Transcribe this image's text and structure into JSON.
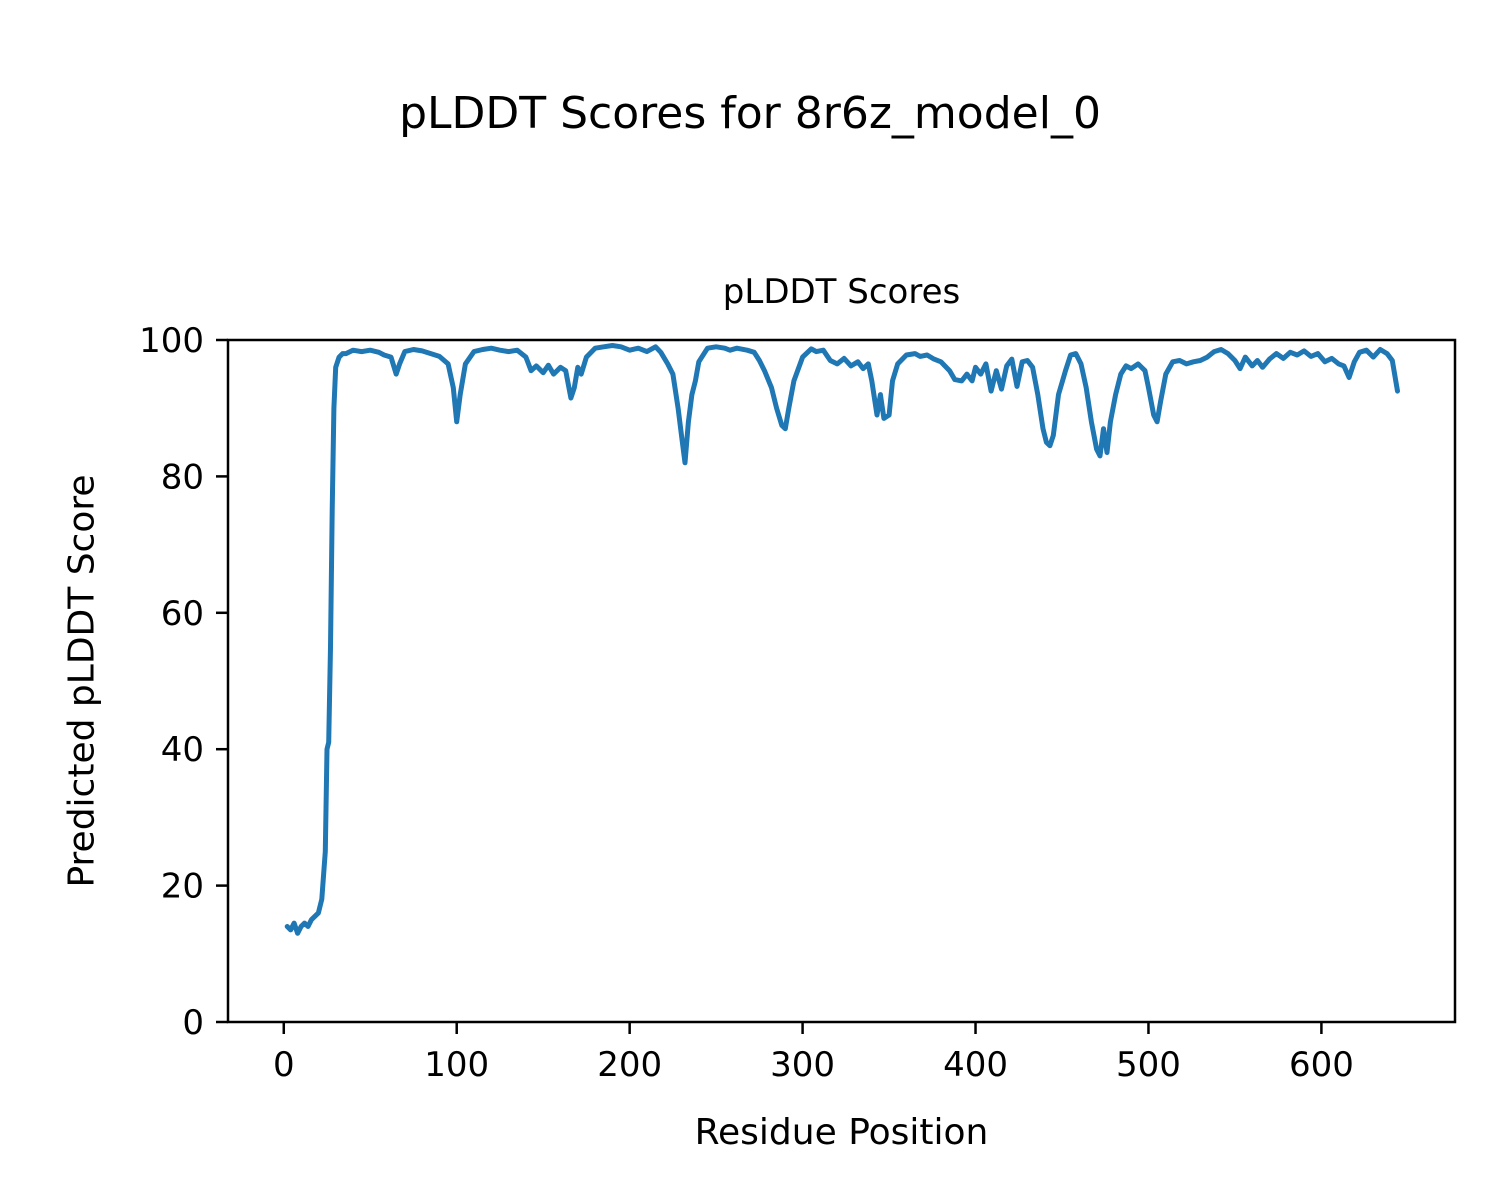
{
  "figure_title": "pLDDT Scores for 8r6z_model_0",
  "chart_data": {
    "type": "line",
    "title": "pLDDT Scores",
    "xlabel": "Residue Position",
    "ylabel": "Predicted pLDDT Score",
    "xlim": [
      -32.25,
      677.25
    ],
    "ylim": [
      0,
      100
    ],
    "xticks": [
      0,
      100,
      200,
      300,
      400,
      500,
      600
    ],
    "yticks": [
      0,
      20,
      40,
      60,
      80,
      100
    ],
    "grid": false,
    "legend": "none",
    "line_color": "#1f77b4",
    "line_width": 5,
    "series": [
      {
        "name": "pLDDT",
        "points": [
          [
            2,
            14
          ],
          [
            4,
            13.5
          ],
          [
            6,
            14.5
          ],
          [
            8,
            13
          ],
          [
            10,
            14
          ],
          [
            12,
            14.5
          ],
          [
            14,
            14
          ],
          [
            16,
            15
          ],
          [
            18,
            15.5
          ],
          [
            20,
            16
          ],
          [
            22,
            18
          ],
          [
            24,
            25
          ],
          [
            25,
            40
          ],
          [
            26,
            41
          ],
          [
            27,
            55
          ],
          [
            28,
            75
          ],
          [
            29,
            90
          ],
          [
            30,
            96
          ],
          [
            32,
            97.5
          ],
          [
            34,
            98
          ],
          [
            36,
            98
          ],
          [
            40,
            98.5
          ],
          [
            45,
            98.3
          ],
          [
            50,
            98.5
          ],
          [
            55,
            98.2
          ],
          [
            58,
            97.8
          ],
          [
            62,
            97.5
          ],
          [
            65,
            95
          ],
          [
            67,
            96.5
          ],
          [
            70,
            98.3
          ],
          [
            75,
            98.6
          ],
          [
            80,
            98.4
          ],
          [
            85,
            98
          ],
          [
            90,
            97.6
          ],
          [
            95,
            96.5
          ],
          [
            98,
            93
          ],
          [
            100,
            88
          ],
          [
            102,
            92
          ],
          [
            105,
            96.5
          ],
          [
            110,
            98.3
          ],
          [
            115,
            98.6
          ],
          [
            120,
            98.8
          ],
          [
            125,
            98.5
          ],
          [
            130,
            98.3
          ],
          [
            135,
            98.5
          ],
          [
            140,
            97.5
          ],
          [
            143,
            95.5
          ],
          [
            146,
            96.2
          ],
          [
            150,
            95.2
          ],
          [
            153,
            96.3
          ],
          [
            156,
            95
          ],
          [
            160,
            96
          ],
          [
            163,
            95.5
          ],
          [
            166,
            91.5
          ],
          [
            168,
            93
          ],
          [
            170,
            96
          ],
          [
            172,
            95
          ],
          [
            175,
            97.5
          ],
          [
            180,
            98.8
          ],
          [
            185,
            99
          ],
          [
            190,
            99.2
          ],
          [
            195,
            99
          ],
          [
            200,
            98.5
          ],
          [
            205,
            98.8
          ],
          [
            210,
            98.3
          ],
          [
            215,
            99
          ],
          [
            218,
            98.2
          ],
          [
            222,
            96.5
          ],
          [
            225,
            95
          ],
          [
            228,
            90
          ],
          [
            230,
            86
          ],
          [
            232,
            82
          ],
          [
            234,
            88
          ],
          [
            236,
            92
          ],
          [
            238,
            94
          ],
          [
            240,
            96.8
          ],
          [
            245,
            98.8
          ],
          [
            250,
            99
          ],
          [
            255,
            98.8
          ],
          [
            258,
            98.5
          ],
          [
            262,
            98.8
          ],
          [
            268,
            98.5
          ],
          [
            272,
            98.2
          ],
          [
            275,
            97
          ],
          [
            278,
            95.5
          ],
          [
            282,
            93
          ],
          [
            285,
            90
          ],
          [
            288,
            87.5
          ],
          [
            290,
            87
          ],
          [
            292,
            90
          ],
          [
            295,
            94
          ],
          [
            300,
            97.5
          ],
          [
            305,
            98.7
          ],
          [
            308,
            98.3
          ],
          [
            312,
            98.5
          ],
          [
            316,
            97
          ],
          [
            320,
            96.5
          ],
          [
            324,
            97.3
          ],
          [
            328,
            96.2
          ],
          [
            332,
            96.8
          ],
          [
            335,
            95.8
          ],
          [
            338,
            96.5
          ],
          [
            340,
            94
          ],
          [
            343,
            89
          ],
          [
            345,
            92
          ],
          [
            347,
            88.5
          ],
          [
            350,
            89
          ],
          [
            352,
            94
          ],
          [
            355,
            96.5
          ],
          [
            360,
            97.8
          ],
          [
            365,
            98
          ],
          [
            368,
            97.6
          ],
          [
            372,
            97.8
          ],
          [
            376,
            97.2
          ],
          [
            380,
            96.8
          ],
          [
            385,
            95.5
          ],
          [
            388,
            94.2
          ],
          [
            392,
            94
          ],
          [
            395,
            95
          ],
          [
            398,
            94
          ],
          [
            400,
            96
          ],
          [
            403,
            95
          ],
          [
            406,
            96.5
          ],
          [
            409,
            92.5
          ],
          [
            412,
            95.5
          ],
          [
            415,
            92.8
          ],
          [
            418,
            96.2
          ],
          [
            421,
            97.2
          ],
          [
            424,
            93.2
          ],
          [
            427,
            96.8
          ],
          [
            430,
            97
          ],
          [
            433,
            96
          ],
          [
            436,
            92
          ],
          [
            439,
            87
          ],
          [
            441,
            85
          ],
          [
            443,
            84.5
          ],
          [
            445,
            86
          ],
          [
            448,
            92
          ],
          [
            452,
            95.5
          ],
          [
            455,
            97.8
          ],
          [
            458,
            98
          ],
          [
            461,
            96.5
          ],
          [
            464,
            93
          ],
          [
            467,
            88
          ],
          [
            470,
            84
          ],
          [
            472,
            83
          ],
          [
            474,
            87
          ],
          [
            476,
            83.5
          ],
          [
            478,
            88
          ],
          [
            481,
            92
          ],
          [
            484,
            95
          ],
          [
            487,
            96.2
          ],
          [
            490,
            95.8
          ],
          [
            494,
            96.5
          ],
          [
            498,
            95.5
          ],
          [
            500,
            93
          ],
          [
            503,
            89
          ],
          [
            505,
            88
          ],
          [
            507,
            91
          ],
          [
            510,
            95
          ],
          [
            514,
            96.8
          ],
          [
            518,
            97
          ],
          [
            522,
            96.5
          ],
          [
            526,
            96.8
          ],
          [
            530,
            97
          ],
          [
            534,
            97.5
          ],
          [
            538,
            98.3
          ],
          [
            542,
            98.6
          ],
          [
            546,
            98
          ],
          [
            550,
            97
          ],
          [
            553,
            95.8
          ],
          [
            556,
            97.5
          ],
          [
            560,
            96.2
          ],
          [
            563,
            97
          ],
          [
            566,
            96
          ],
          [
            570,
            97.2
          ],
          [
            574,
            98
          ],
          [
            578,
            97.3
          ],
          [
            582,
            98.2
          ],
          [
            586,
            97.8
          ],
          [
            590,
            98.4
          ],
          [
            594,
            97.6
          ],
          [
            598,
            98
          ],
          [
            602,
            96.8
          ],
          [
            606,
            97.3
          ],
          [
            610,
            96.5
          ],
          [
            613,
            96.2
          ],
          [
            616,
            94.5
          ],
          [
            619,
            96.8
          ],
          [
            622,
            98.2
          ],
          [
            626,
            98.5
          ],
          [
            630,
            97.5
          ],
          [
            634,
            98.6
          ],
          [
            638,
            98
          ],
          [
            641,
            97
          ],
          [
            644,
            92.5
          ]
        ]
      }
    ]
  }
}
